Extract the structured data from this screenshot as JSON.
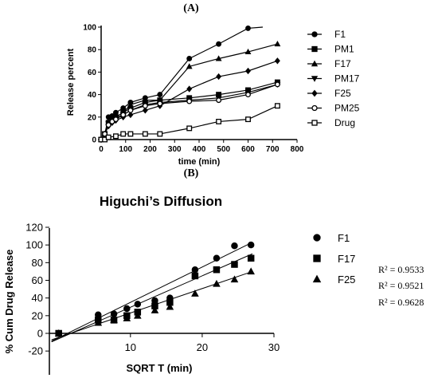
{
  "chart_data": [
    {
      "type": "line",
      "panel_label": "(A)",
      "title": "",
      "xlabel": "time (min)",
      "ylabel": "Release percent",
      "xlim": [
        0,
        800
      ],
      "ylim": [
        0,
        100
      ],
      "xticks": [
        0,
        100,
        200,
        300,
        400,
        500,
        600,
        700,
        800
      ],
      "yticks": [
        0,
        20,
        40,
        60,
        80,
        100
      ],
      "legend_position": "right",
      "series": [
        {
          "name": "F1",
          "marker": "circle-filled",
          "x": [
            0,
            15,
            30,
            45,
            60,
            90,
            120,
            180,
            240,
            360,
            480,
            600,
            660
          ],
          "y": [
            0,
            5,
            20,
            21,
            24,
            28,
            33,
            37,
            40,
            72,
            85,
            99,
            100
          ]
        },
        {
          "name": "PM1",
          "marker": "square-filled",
          "x": [
            0,
            15,
            30,
            45,
            60,
            90,
            120,
            180,
            240,
            360,
            480,
            600,
            720
          ],
          "y": [
            0,
            5,
            15,
            17,
            20,
            24,
            28,
            33,
            35,
            37,
            40,
            44,
            51
          ]
        },
        {
          "name": "F17",
          "marker": "triangle-up-filled",
          "x": [
            0,
            15,
            30,
            45,
            60,
            90,
            120,
            180,
            240,
            360,
            480,
            600,
            720
          ],
          "y": [
            0,
            5,
            15,
            17,
            20,
            24,
            31,
            35,
            35,
            65,
            72,
            78,
            85
          ]
        },
        {
          "name": "PM17",
          "marker": "triangle-down-filled",
          "x": [
            0,
            15,
            30,
            45,
            60,
            90,
            120,
            180,
            240,
            360,
            480,
            600,
            720
          ],
          "y": [
            0,
            5,
            14,
            16,
            19,
            22,
            26,
            31,
            33,
            35,
            37,
            42,
            49
          ]
        },
        {
          "name": "F25",
          "marker": "diamond-filled",
          "x": [
            0,
            15,
            30,
            45,
            60,
            90,
            120,
            180,
            240,
            360,
            480,
            600,
            720
          ],
          "y": [
            0,
            5,
            12,
            15,
            17,
            20,
            22,
            26,
            30,
            45,
            56,
            61,
            70
          ]
        },
        {
          "name": "PM25",
          "marker": "circle-open",
          "x": [
            0,
            15,
            30,
            45,
            60,
            90,
            120,
            180,
            240,
            360,
            480,
            600,
            720
          ],
          "y": [
            0,
            5,
            13,
            16,
            18,
            22,
            26,
            30,
            32,
            34,
            35,
            40,
            49
          ]
        },
        {
          "name": "Drug",
          "marker": "square-open",
          "x": [
            0,
            15,
            30,
            60,
            90,
            120,
            180,
            240,
            360,
            480,
            600,
            720
          ],
          "y": [
            0,
            0,
            2,
            3,
            5,
            5,
            5,
            5,
            10,
            16,
            18,
            30
          ]
        }
      ]
    },
    {
      "type": "scatter",
      "panel_label": "(B)",
      "title": "Higuchi’s Diffusion",
      "xlabel": "SQRT T (min)",
      "ylabel": "% Cum Drug Release",
      "xlim": [
        0,
        30
      ],
      "ylim": [
        -20,
        120
      ],
      "xticks": [
        10,
        20,
        30
      ],
      "yticks": [
        -20,
        0,
        20,
        40,
        60,
        80,
        100,
        120
      ],
      "legend_position": "right",
      "r2_labels": [
        "R² = 0.9533",
        "R² = 0.9521",
        "R² = 0.9628"
      ],
      "series": [
        {
          "name": "F1",
          "marker": "circle-filled",
          "x": [
            0,
            5.5,
            7.7,
            9.5,
            11,
            13.4,
            15.5,
            19,
            22,
            24.5,
            26.8
          ],
          "y": [
            0,
            21,
            22,
            28,
            33,
            37,
            40,
            72,
            85,
            99,
            100
          ],
          "fit": [
            [
              -1,
              -8.9
            ],
            [
              27,
              103
            ]
          ]
        },
        {
          "name": "F17",
          "marker": "square-filled",
          "x": [
            0,
            5.5,
            7.7,
            9.5,
            11,
            13.4,
            15.5,
            19,
            22,
            24.5,
            26.8
          ],
          "y": [
            0,
            15,
            15,
            20,
            24,
            31,
            35,
            65,
            72,
            78,
            85
          ],
          "fit": [
            [
              -1,
              -9.6
            ],
            [
              27,
              90
            ]
          ]
        },
        {
          "name": "F25",
          "marker": "triangle-up-filled",
          "x": [
            0,
            5.5,
            7.7,
            9.5,
            11,
            13.4,
            15.5,
            19,
            22,
            24.5,
            26.8
          ],
          "y": [
            0,
            12,
            15,
            17,
            20,
            26,
            30,
            45,
            56,
            61,
            70
          ],
          "fit": [
            [
              -1,
              -7.3
            ],
            [
              27,
              70
            ]
          ]
        }
      ]
    }
  ]
}
